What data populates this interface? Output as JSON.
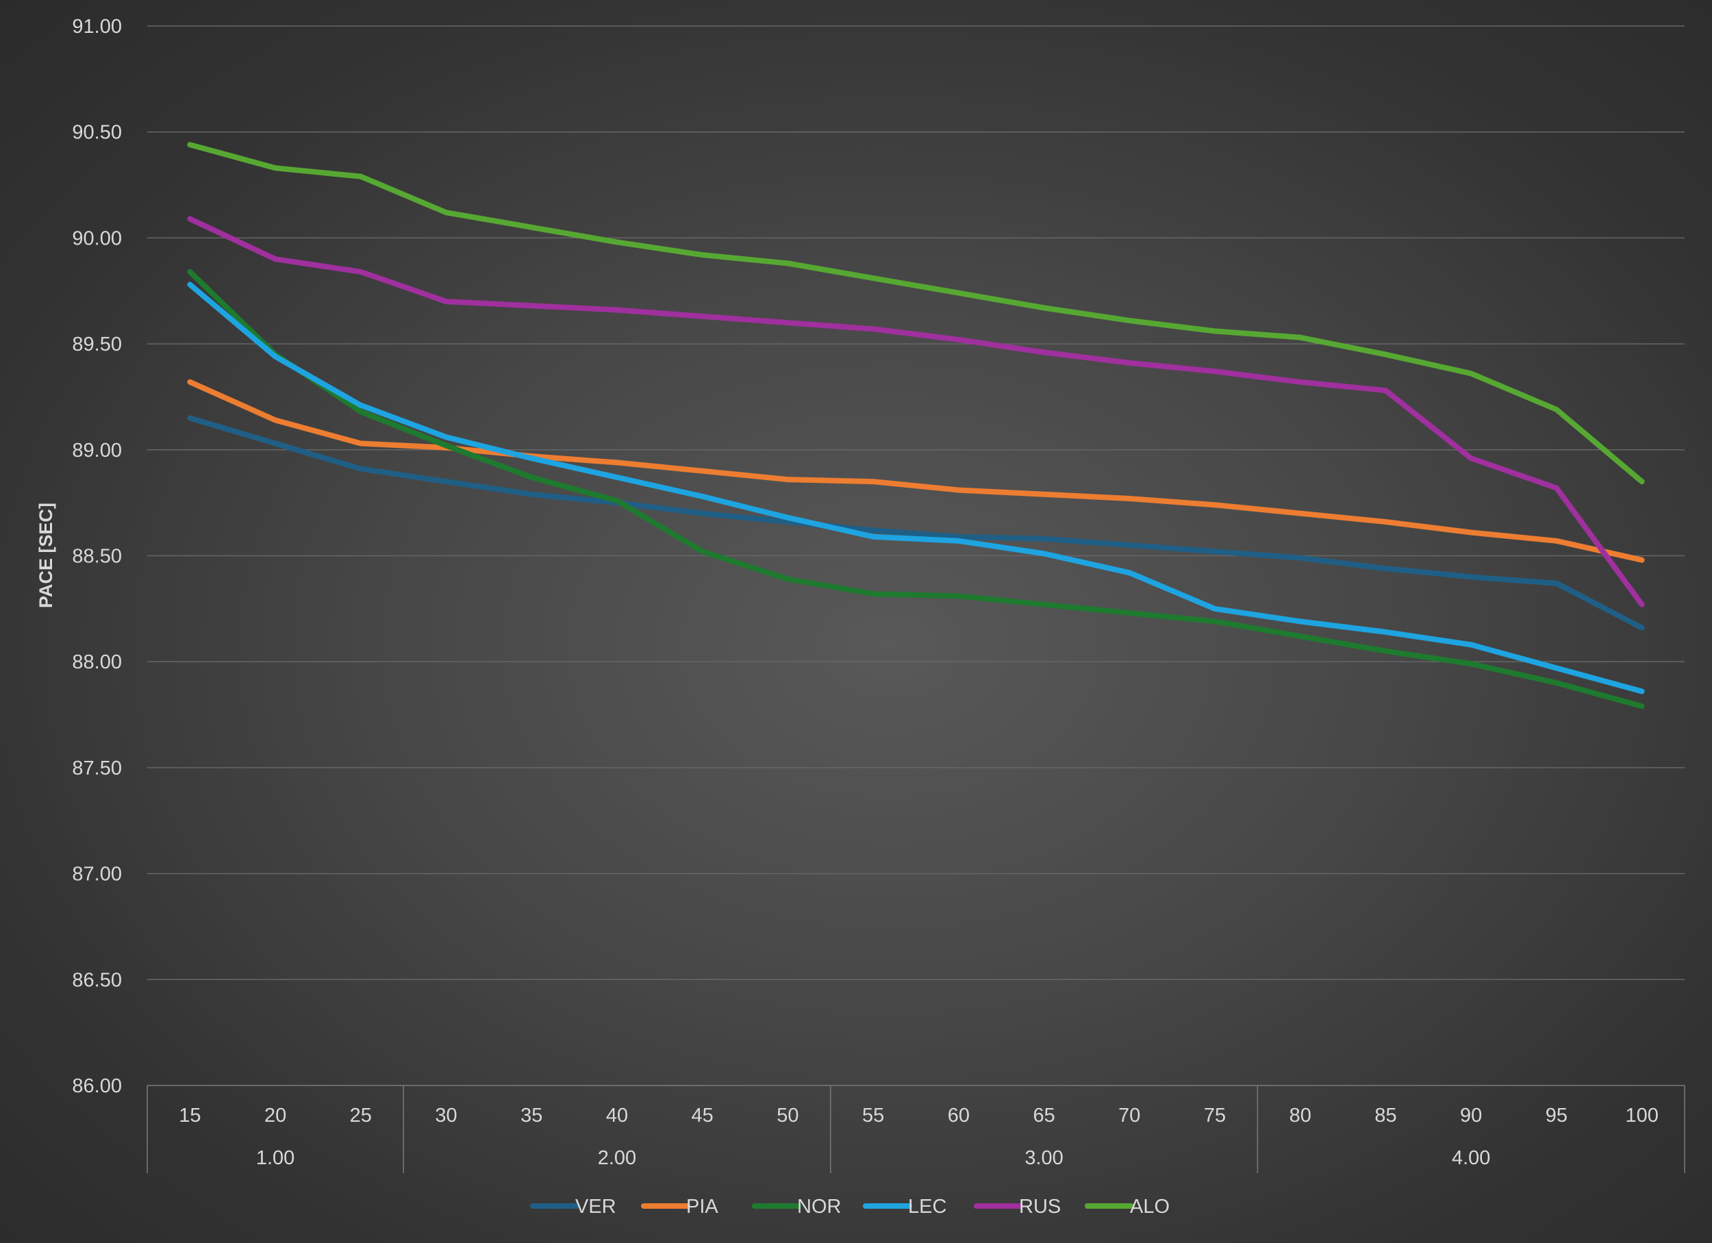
{
  "chart_data": {
    "type": "line",
    "title": "",
    "xlabel": "",
    "ylabel": "PACE [SEC]",
    "ylim": [
      86.0,
      91.0
    ],
    "y_ticks": [
      "86.00",
      "86.50",
      "87.00",
      "87.50",
      "88.00",
      "88.50",
      "89.00",
      "89.50",
      "90.00",
      "90.50",
      "91.00"
    ],
    "categories": [
      "15",
      "20",
      "25",
      "30",
      "35",
      "40",
      "45",
      "50",
      "55",
      "60",
      "65",
      "70",
      "75",
      "80",
      "85",
      "90",
      "95",
      "100"
    ],
    "groups": [
      {
        "label": "1.00",
        "span": 3
      },
      {
        "label": "2.00",
        "span": 5
      },
      {
        "label": "3.00",
        "span": 5
      },
      {
        "label": "4.00",
        "span": 5
      }
    ],
    "grid": true,
    "legend_position": "bottom",
    "series": [
      {
        "name": "VER",
        "color": "#1f5f86",
        "values": [
          89.15,
          89.03,
          88.91,
          88.85,
          88.79,
          88.75,
          88.7,
          88.66,
          88.62,
          88.59,
          88.58,
          88.55,
          88.52,
          88.49,
          88.44,
          88.4,
          88.37,
          88.16
        ]
      },
      {
        "name": "PIA",
        "color": "#ed7d31",
        "values": [
          89.32,
          89.14,
          89.03,
          89.01,
          88.97,
          88.94,
          88.9,
          88.86,
          88.85,
          88.81,
          88.79,
          88.77,
          88.74,
          88.7,
          88.66,
          88.61,
          88.57,
          88.48
        ]
      },
      {
        "name": "NOR",
        "color": "#1e7a2e",
        "values": [
          89.84,
          89.45,
          89.18,
          89.02,
          88.87,
          88.76,
          88.52,
          88.39,
          88.32,
          88.31,
          88.27,
          88.23,
          88.19,
          88.12,
          88.05,
          87.99,
          87.9,
          87.79
        ]
      },
      {
        "name": "LEC",
        "color": "#1ea4e0",
        "values": [
          89.78,
          89.44,
          89.21,
          89.06,
          88.96,
          88.87,
          88.78,
          88.68,
          88.59,
          88.57,
          88.51,
          88.42,
          88.25,
          88.19,
          88.14,
          88.08,
          87.97,
          87.86
        ]
      },
      {
        "name": "RUS",
        "color": "#a0309e",
        "values": [
          90.09,
          89.9,
          89.84,
          89.7,
          89.68,
          89.66,
          89.63,
          89.6,
          89.57,
          89.52,
          89.46,
          89.41,
          89.37,
          89.32,
          89.28,
          88.96,
          88.82,
          88.27
        ]
      },
      {
        "name": "ALO",
        "color": "#56a832",
        "values": [
          90.44,
          90.33,
          90.29,
          90.12,
          90.05,
          89.98,
          89.92,
          89.88,
          89.81,
          89.74,
          89.67,
          89.61,
          89.56,
          89.53,
          89.45,
          89.36,
          89.19,
          88.85
        ]
      }
    ]
  }
}
